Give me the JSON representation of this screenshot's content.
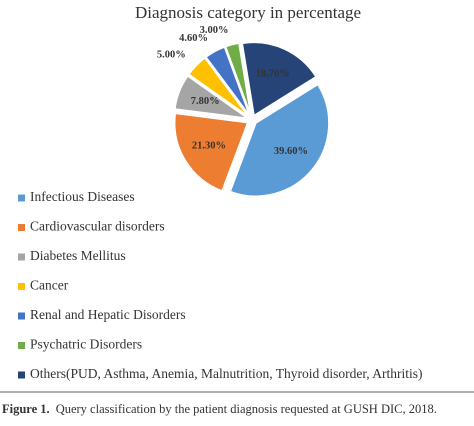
{
  "chart_data": {
    "type": "pie",
    "title": "Diagnosis category in percentage",
    "categories": [
      "Infectious Diseases",
      "Cardiovascular disorders",
      "Diabetes Mellitus",
      "Cancer",
      "Renal and Hepatic Disorders",
      "Psychatric Disorders",
      "Others(PUD, Asthma, Anemia, Malnutrition, Thyroid disorder, Arthritis)"
    ],
    "values": [
      39.6,
      21.3,
      7.8,
      5.0,
      4.6,
      3.0,
      18.7
    ],
    "value_labels": [
      "39.60%",
      "21.30%",
      "7.80%",
      "5.00%",
      "4.60%",
      "3.00%",
      "18.70%"
    ],
    "colors": [
      "#5b9bd5",
      "#ed7d31",
      "#a5a5a5",
      "#ffc000",
      "#4472c4",
      "#70ad47",
      "#264478"
    ],
    "legend": "bottom"
  },
  "caption": {
    "label": "Figure 1.",
    "text": "Query classification by the patient diagnosis requested at GUSH DIC, 2018."
  }
}
